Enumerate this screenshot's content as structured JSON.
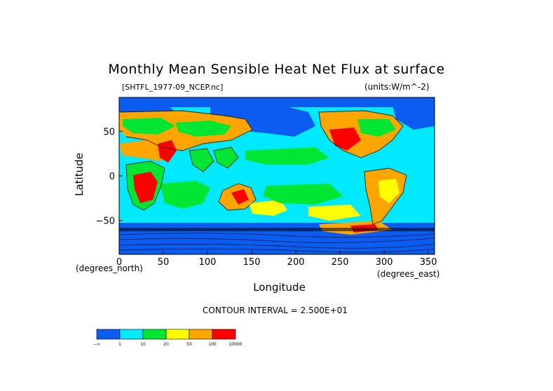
{
  "figure": {
    "title": "Monthly Mean Sensible Heat Net Flux at surface",
    "file_label": "[SHTFL_1977-09_NCEP.nc]",
    "units_label": "(units:W/m^-2)",
    "contour_interval": "CONTOUR INTERVAL = 2.500E+01"
  },
  "axes": {
    "x": {
      "label": "Longitude",
      "units_left": "(degrees_north)",
      "units_right": "(degrees_east)",
      "range": [
        0,
        357
      ],
      "ticks": [
        "0",
        "50",
        "100",
        "150",
        "200",
        "250",
        "300",
        "350"
      ]
    },
    "y": {
      "label": "Latitude",
      "range": [
        -88,
        88
      ],
      "ticks": [
        "50",
        "0",
        "−50"
      ]
    }
  },
  "colorbar": {
    "bins": [
      {
        "color": "#0b5cf0",
        "label": "−∞"
      },
      {
        "color": "#00e9ff",
        "label": "1"
      },
      {
        "color": "#00e632",
        "label": "10"
      },
      {
        "color": "#ffff00",
        "label": "20"
      },
      {
        "color": "#ffa500",
        "label": "50"
      },
      {
        "color": "#ff0000",
        "label": "100"
      },
      {
        "color": "",
        "label": "10000"
      }
    ]
  },
  "field_colors": {
    "ocean_low": "#0b5cf0",
    "ocean_mid": "#00e9ff",
    "green": "#00e632",
    "yellow": "#ffff00",
    "orange": "#ffa500",
    "red": "#ff0000"
  }
}
